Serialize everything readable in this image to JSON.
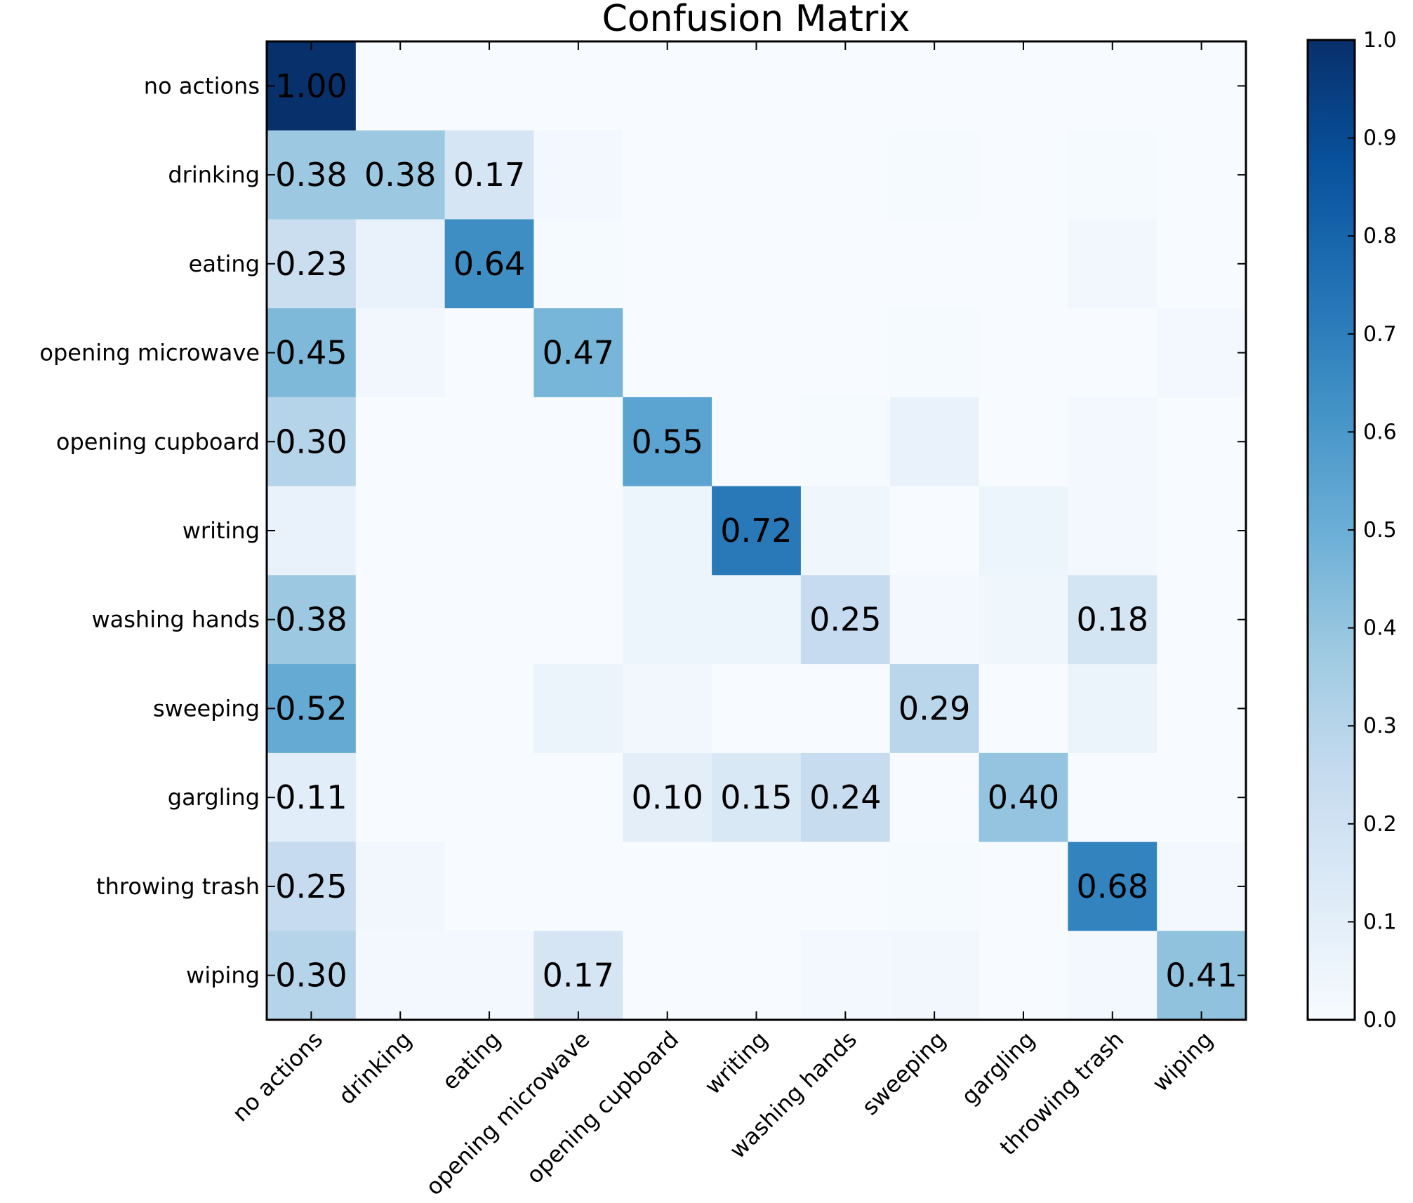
{
  "chart_data": {
    "type": "heatmap",
    "title": "Confusion Matrix",
    "xlabel": "",
    "ylabel": "",
    "row_labels": [
      "no actions",
      "drinking",
      "eating",
      "opening microwave",
      "opening cupboard",
      "writing",
      "washing hands",
      "sweeping",
      "gargling",
      "throwing trash",
      "wiping"
    ],
    "col_labels": [
      "no actions",
      "drinking",
      "eating",
      "opening microwave",
      "opening cupboard",
      "writing",
      "washing hands",
      "sweeping",
      "gargling",
      "throwing trash",
      "wiping"
    ],
    "values": [
      [
        1.0,
        0.0,
        0.0,
        0.0,
        0.0,
        0.0,
        0.0,
        0.0,
        0.0,
        0.0,
        0.0
      ],
      [
        0.38,
        0.38,
        0.17,
        0.02,
        0.0,
        0.0,
        0.0,
        0.01,
        0.0,
        0.01,
        0.0
      ],
      [
        0.23,
        0.07,
        0.64,
        0.01,
        0.0,
        0.0,
        0.0,
        0.0,
        0.0,
        0.03,
        0.0
      ],
      [
        0.45,
        0.03,
        0.0,
        0.47,
        0.0,
        0.0,
        0.0,
        0.01,
        0.0,
        0.0,
        0.02
      ],
      [
        0.3,
        0.0,
        0.0,
        0.0,
        0.55,
        0.0,
        0.01,
        0.07,
        0.0,
        0.02,
        0.0
      ],
      [
        0.07,
        0.0,
        0.0,
        0.0,
        0.05,
        0.72,
        0.04,
        0.0,
        0.05,
        0.02,
        0.0
      ],
      [
        0.38,
        0.0,
        0.0,
        0.0,
        0.05,
        0.05,
        0.25,
        0.02,
        0.04,
        0.18,
        0.0
      ],
      [
        0.52,
        0.0,
        0.0,
        0.06,
        0.03,
        0.0,
        0.0,
        0.29,
        0.0,
        0.06,
        0.0
      ],
      [
        0.11,
        0.0,
        0.0,
        0.0,
        0.1,
        0.15,
        0.24,
        0.0,
        0.4,
        0.0,
        0.0
      ],
      [
        0.25,
        0.03,
        0.0,
        0.0,
        0.0,
        0.0,
        0.0,
        0.01,
        0.0,
        0.68,
        0.02
      ],
      [
        0.3,
        0.02,
        0.02,
        0.17,
        0.0,
        0.0,
        0.02,
        0.03,
        0.0,
        0.02,
        0.41
      ]
    ],
    "labeled_cells": [
      {
        "row": 0,
        "col": 0,
        "text": "1.00"
      },
      {
        "row": 1,
        "col": 0,
        "text": "0.38"
      },
      {
        "row": 1,
        "col": 1,
        "text": "0.38"
      },
      {
        "row": 1,
        "col": 2,
        "text": "0.17"
      },
      {
        "row": 2,
        "col": 0,
        "text": "0.23"
      },
      {
        "row": 2,
        "col": 2,
        "text": "0.64"
      },
      {
        "row": 3,
        "col": 0,
        "text": "0.45"
      },
      {
        "row": 3,
        "col": 3,
        "text": "0.47"
      },
      {
        "row": 4,
        "col": 0,
        "text": "0.30"
      },
      {
        "row": 4,
        "col": 4,
        "text": "0.55"
      },
      {
        "row": 5,
        "col": 5,
        "text": "0.72"
      },
      {
        "row": 6,
        "col": 0,
        "text": "0.38"
      },
      {
        "row": 6,
        "col": 6,
        "text": "0.25"
      },
      {
        "row": 6,
        "col": 9,
        "text": "0.18"
      },
      {
        "row": 7,
        "col": 0,
        "text": "0.52"
      },
      {
        "row": 7,
        "col": 7,
        "text": "0.29"
      },
      {
        "row": 8,
        "col": 0,
        "text": "0.11"
      },
      {
        "row": 8,
        "col": 4,
        "text": "0.10"
      },
      {
        "row": 8,
        "col": 5,
        "text": "0.15"
      },
      {
        "row": 8,
        "col": 6,
        "text": "0.24"
      },
      {
        "row": 8,
        "col": 8,
        "text": "0.40"
      },
      {
        "row": 9,
        "col": 0,
        "text": "0.25"
      },
      {
        "row": 9,
        "col": 9,
        "text": "0.68"
      },
      {
        "row": 10,
        "col": 0,
        "text": "0.30"
      },
      {
        "row": 10,
        "col": 3,
        "text": "0.17"
      },
      {
        "row": 10,
        "col": 10,
        "text": "0.41"
      }
    ],
    "colorbar": {
      "range": [
        0.0,
        1.0
      ],
      "ticks": [
        "0.0",
        "0.1",
        "0.2",
        "0.3",
        "0.4",
        "0.5",
        "0.6",
        "0.7",
        "0.8",
        "0.9",
        "1.0"
      ],
      "colormap": "Blues",
      "colors": [
        "#f7fbff",
        "#deebf7",
        "#c6dbef",
        "#9ecae1",
        "#6baed6",
        "#4292c6",
        "#2171b5",
        "#08519c",
        "#08306b"
      ]
    }
  }
}
